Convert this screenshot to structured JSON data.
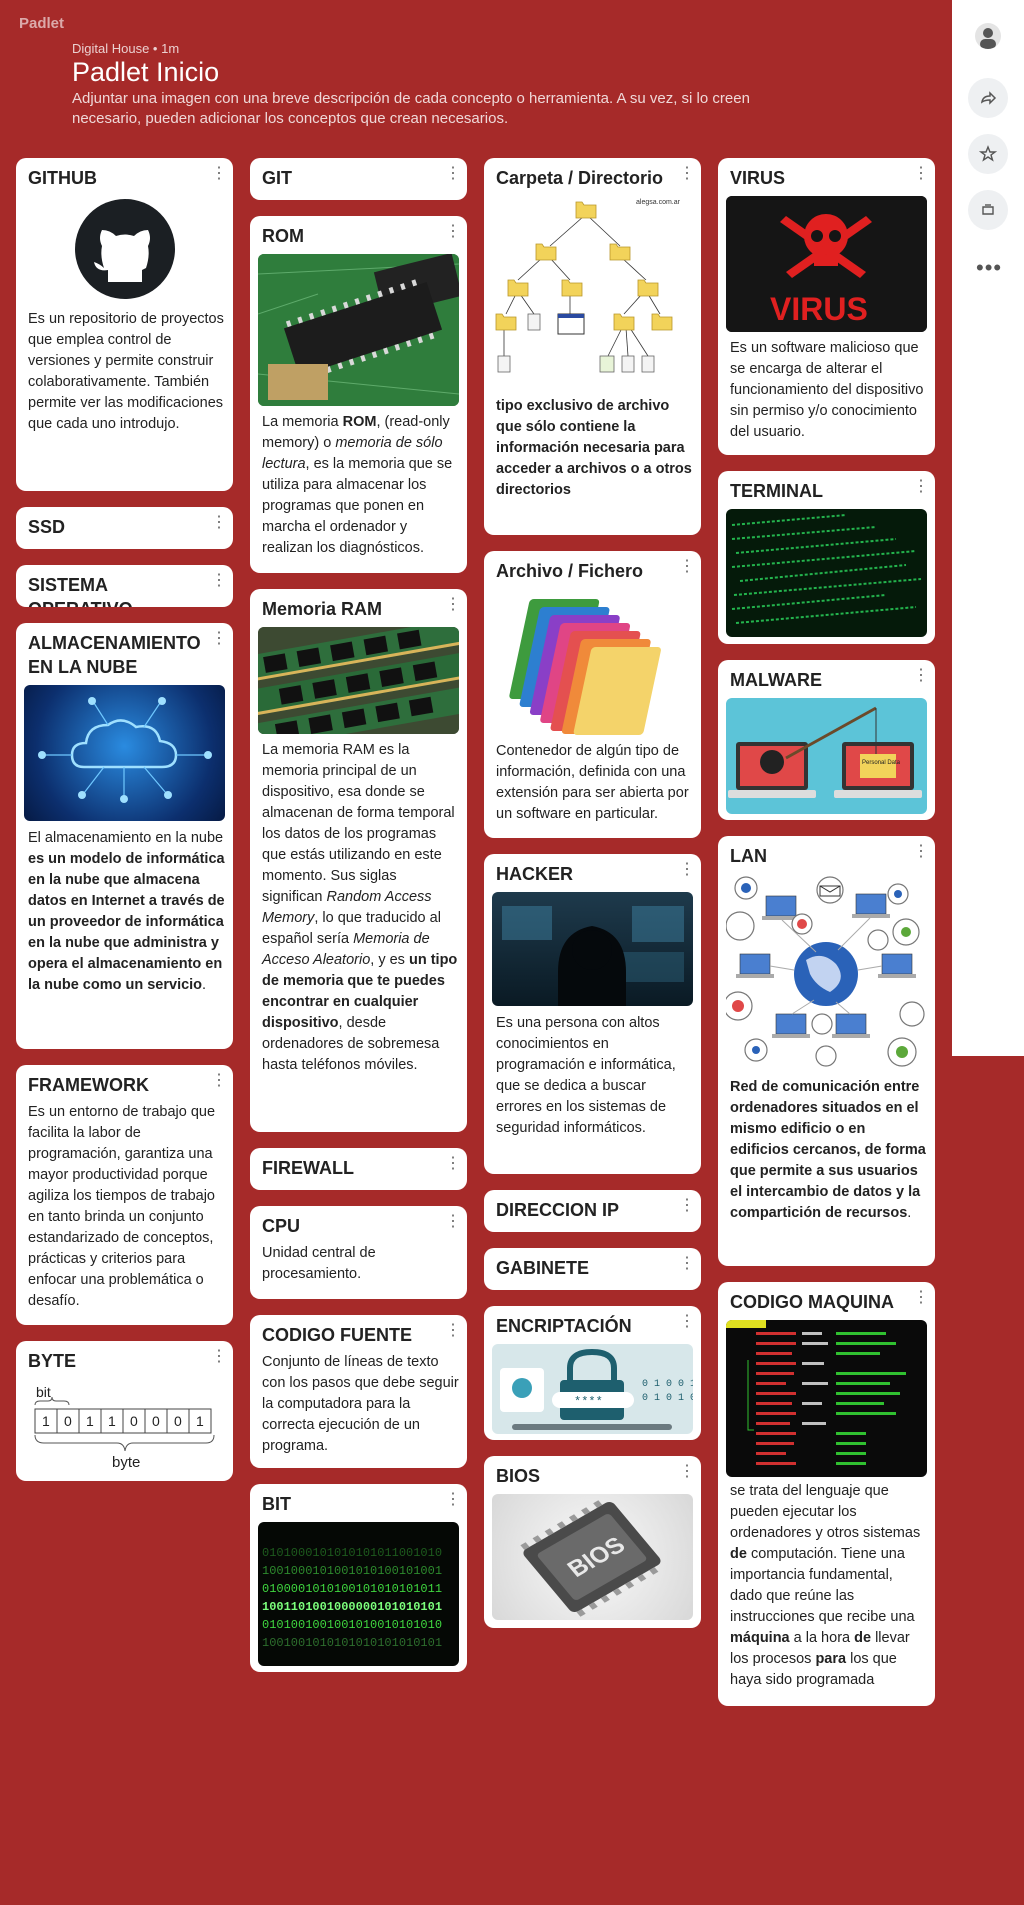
{
  "app": {
    "logo": "Padlet"
  },
  "header": {
    "breadcrumb": "Digital House • 1m",
    "title": "Padlet Inicio",
    "description": "Adjuntar una imagen con una breve descripción de cada concepto o herramienta. A su vez, si lo creen necesario, pueden adicionar los conceptos que crean necesarios."
  },
  "rightbar": {
    "more_label": "•••"
  },
  "cards": {
    "github": {
      "title": "GITHUB",
      "text": "Es un repositorio de proyectos que emplea control de versiones y permite construir colaborativamente. También permite ver las modificaciones que cada uno introdujo."
    },
    "ssd": {
      "title": "SSD"
    },
    "so": {
      "title": "SISTEMA OPERATIVO"
    },
    "nube": {
      "title": "ALMACENAMIENTO EN LA NUBE",
      "t1": "El almacenamiento en la nube ",
      "t2": "es un modelo de informática en la nube que almacena datos en Internet a través de un proveedor de informática en la nube que administra y opera el almacenamiento en la nube como un servicio",
      "t3": "."
    },
    "framework": {
      "title": "FRAMEWORK",
      "text": "Es un entorno de trabajo que facilita la labor de programación, garantiza una mayor productividad porque agiliza los tiempos de trabajo en tanto brinda un conjunto estandarizado de conceptos, prácticas y criterios para enfocar una problemática o desafío."
    },
    "byte": {
      "title": "BYTE",
      "bit_label": "bit",
      "byte_label": "byte",
      "bits": [
        "1",
        "0",
        "1",
        "1",
        "0",
        "0",
        "0",
        "1"
      ]
    },
    "git": {
      "title": "GIT"
    },
    "rom": {
      "title": "ROM",
      "t1": "La memoria ",
      "t2": "ROM",
      "t3": ", (read-only memory) o ",
      "t4": "memoria de sólo lectura",
      "t5": ", es la memoria que se utiliza para almacenar los programas que ponen en marcha el ordenador y realizan los diagnósticos."
    },
    "ram": {
      "title": "Memoria RAM",
      "t1": "La memoria RAM es la memoria principal de un dispositivo, esa donde se almacenan de forma temporal los datos de los programas que estás utilizando en este momento. Sus siglas significan ",
      "t2": "Random Access Memory",
      "t3": ", lo que traducido al español sería ",
      "t4": "Memoria de Acceso Aleatorio",
      "t5": ", y es ",
      "t6": "un tipo de memoria que te puedes encontrar en cualquier dispositivo",
      "t7": ", desde ordenadores de sobremesa hasta teléfonos móviles."
    },
    "firewall": {
      "title": "FIREWALL"
    },
    "cpu": {
      "title": "CPU",
      "text": "Unidad central de procesamiento."
    },
    "codigo_fuente": {
      "title": "CODIGO FUENTE",
      "text": "Conjunto de líneas de texto con los pasos que debe seguir la computadora para la correcta ejecución de un programa."
    },
    "bit": {
      "title": "BIT",
      "binary": [
        "0101000101010101011001010",
        "1001000101001010100101001",
        "0100001010100101010101011",
        "1001101001000000101010101",
        "0101001001001010010101010",
        "1001001010101010101010101"
      ]
    },
    "carpeta": {
      "title": "Carpeta / Directorio",
      "source": "alegsa.com.ar",
      "text": "tipo exclusivo de archivo que sólo contiene la información necesaria para acceder a archivos o a otros directorios"
    },
    "archivo": {
      "title": "Archivo / Fichero",
      "text": "Contenedor de algún tipo de información, definida con una extensión para ser abierta por un software en particular."
    },
    "hacker": {
      "title": "HACKER",
      "text": "Es una persona con altos conocimientos en programación e informática, que se dedica a buscar errores en los sistemas de seguridad informáticos."
    },
    "ip": {
      "title": "DIRECCION IP"
    },
    "gabinete": {
      "title": "GABINETE"
    },
    "encriptacion": {
      "title": "ENCRIPTACIÓN",
      "pw": "****",
      "bin1": "0 1 0 0 1",
      "bin2": "0 1 0 1 0"
    },
    "bios": {
      "title": "BIOS",
      "chip_label": "BIOS"
    },
    "virus": {
      "title": "VIRUS",
      "img_label": "VIRUS",
      "text": "Es un software malicioso que se encarga de alterar el funcionamiento del dispositivo sin permiso y/o conocimiento del usuario."
    },
    "terminal": {
      "title": "TERMINAL"
    },
    "malware": {
      "title": "MALWARE",
      "img_label": "Personal Data"
    },
    "lan": {
      "title": "LAN",
      "t1": "Red de comunicación entre ordenadores situados en el mismo edificio o en edificios cercanos, de forma que permite a sus usuarios el intercambio de datos y la compartición de recursos",
      "t2": "."
    },
    "maquina": {
      "title": "CODIGO MAQUINA",
      "t1": "se trata del lenguaje que pueden ejecutar los ordenadores y otros sistemas ",
      "t2": "de",
      "t3": " computación. Tiene una importancia fundamental, dado que reúne las instrucciones que recibe una ",
      "t4": "máquina",
      "t5": " a la hora ",
      "t6": "de",
      "t7": " llevar los procesos ",
      "t8": "para",
      "t9": " los que haya sido programada"
    }
  },
  "colors": {
    "background": "#a62a29",
    "card": "#ffffff"
  }
}
